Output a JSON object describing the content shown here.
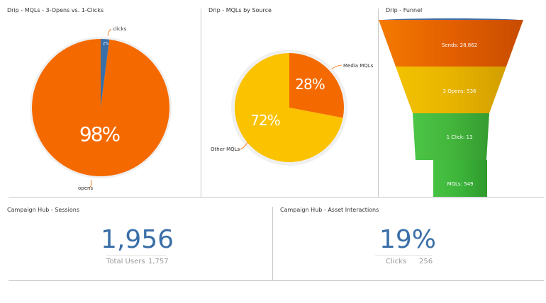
{
  "panels": {
    "p1": {
      "title": "Drip - MQLs - 3-Opens vs. 1-Clicks",
      "chart_data": {
        "type": "pie",
        "slices": [
          {
            "label": "clicks",
            "value": 2,
            "display": "2%",
            "color": "#3a6fa8"
          },
          {
            "label": "opens",
            "value": 98,
            "display": "98%",
            "color": "#f56a00"
          }
        ]
      }
    },
    "p2": {
      "title": "Drip - MQLs by Source",
      "chart_data": {
        "type": "pie",
        "slices": [
          {
            "label": "Media MQLs",
            "value": 28,
            "display": "28%",
            "color": "#f56a00"
          },
          {
            "label": "Other MQLs",
            "value": 72,
            "display": "72%",
            "color": "#fbc200"
          }
        ]
      }
    },
    "p3": {
      "title": "Drip - Funnel",
      "chart_data": {
        "type": "funnel",
        "stages": [
          {
            "label": "Sends: 28,862",
            "color": "#e35f00"
          },
          {
            "label": "3 Opens: 536",
            "color": "#e8b400"
          },
          {
            "label": "1 Click: 13",
            "color": "#43b53c"
          },
          {
            "label": "MQLs: 549",
            "color": "#3cb43a"
          }
        ]
      }
    },
    "p4": {
      "title": "Campaign Hub - Sessions",
      "value": "1,956",
      "sub_label": "Total Users",
      "sub_value": "1,757"
    },
    "p5": {
      "title": "Campaign Hub - Asset Interactions",
      "value": "19%",
      "sub_label": "Clicks",
      "sub_value": "256"
    }
  },
  "colors": {
    "blue": "#3a6fa8",
    "orange": "#f56a00",
    "yellow": "#fbc200",
    "divider": "#c8c8c8"
  }
}
